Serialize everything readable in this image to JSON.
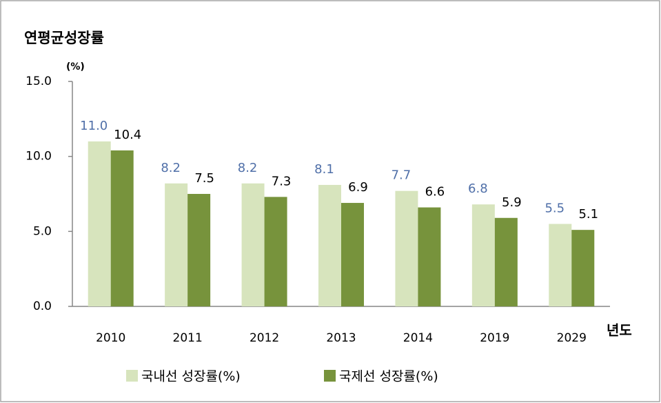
{
  "chart_data": {
    "type": "bar",
    "title": "연평균성장률",
    "y_unit": "(%)",
    "x_label": "년도",
    "categories": [
      "2010",
      "2011",
      "2012",
      "2013",
      "2014",
      "2019",
      "2029"
    ],
    "series": [
      {
        "name": "국내선 성장률(%)",
        "color": "#d7e4bd",
        "label_color": "#4f6fa8",
        "values": [
          11.0,
          8.2,
          8.2,
          8.1,
          7.7,
          6.8,
          5.5
        ],
        "value_labels": [
          "11.0",
          "8.2",
          "8.2",
          "8.1",
          "7.7",
          "6.8",
          "5.5"
        ]
      },
      {
        "name": "국제선 성장률(%)",
        "color": "#77933c",
        "label_color": "#000000",
        "values": [
          10.4,
          7.5,
          7.3,
          6.9,
          6.6,
          5.9,
          5.1
        ],
        "value_labels": [
          "10.4",
          "7.5",
          "7.3",
          "6.9",
          "6.6",
          "5.9",
          "5.1"
        ]
      }
    ],
    "ylim": [
      0,
      15
    ],
    "yticks": [
      {
        "value": 0,
        "label": "0.0"
      },
      {
        "value": 5,
        "label": "5.0"
      },
      {
        "value": 10,
        "label": "10.0"
      },
      {
        "value": 15,
        "label": "15.0"
      }
    ],
    "grid": false,
    "legend": "bottom"
  }
}
